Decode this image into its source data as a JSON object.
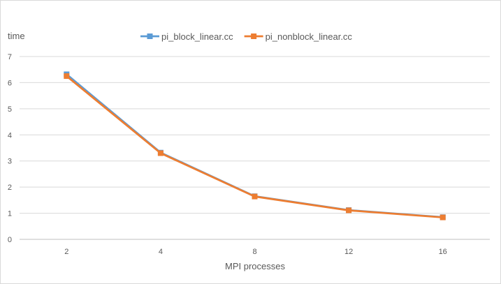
{
  "chart_data": {
    "type": "line",
    "title": "",
    "xlabel": "MPI processes",
    "ylabel": "time",
    "categories": [
      "2",
      "4",
      "8",
      "12",
      "16"
    ],
    "ylim": [
      0,
      7
    ],
    "yticks": [
      "0",
      "1",
      "2",
      "3",
      "4",
      "5",
      "6",
      "7"
    ],
    "grid": true,
    "legend_position": "top-center",
    "series": [
      {
        "name": "pi_block_linear.cc",
        "values": [
          6.32,
          3.32,
          1.65,
          1.12,
          0.85
        ],
        "color": "#5b9bd5"
      },
      {
        "name": "pi_nonblock_linear.cc",
        "values": [
          6.25,
          3.3,
          1.64,
          1.11,
          0.84
        ],
        "color": "#ed7d31"
      }
    ]
  }
}
